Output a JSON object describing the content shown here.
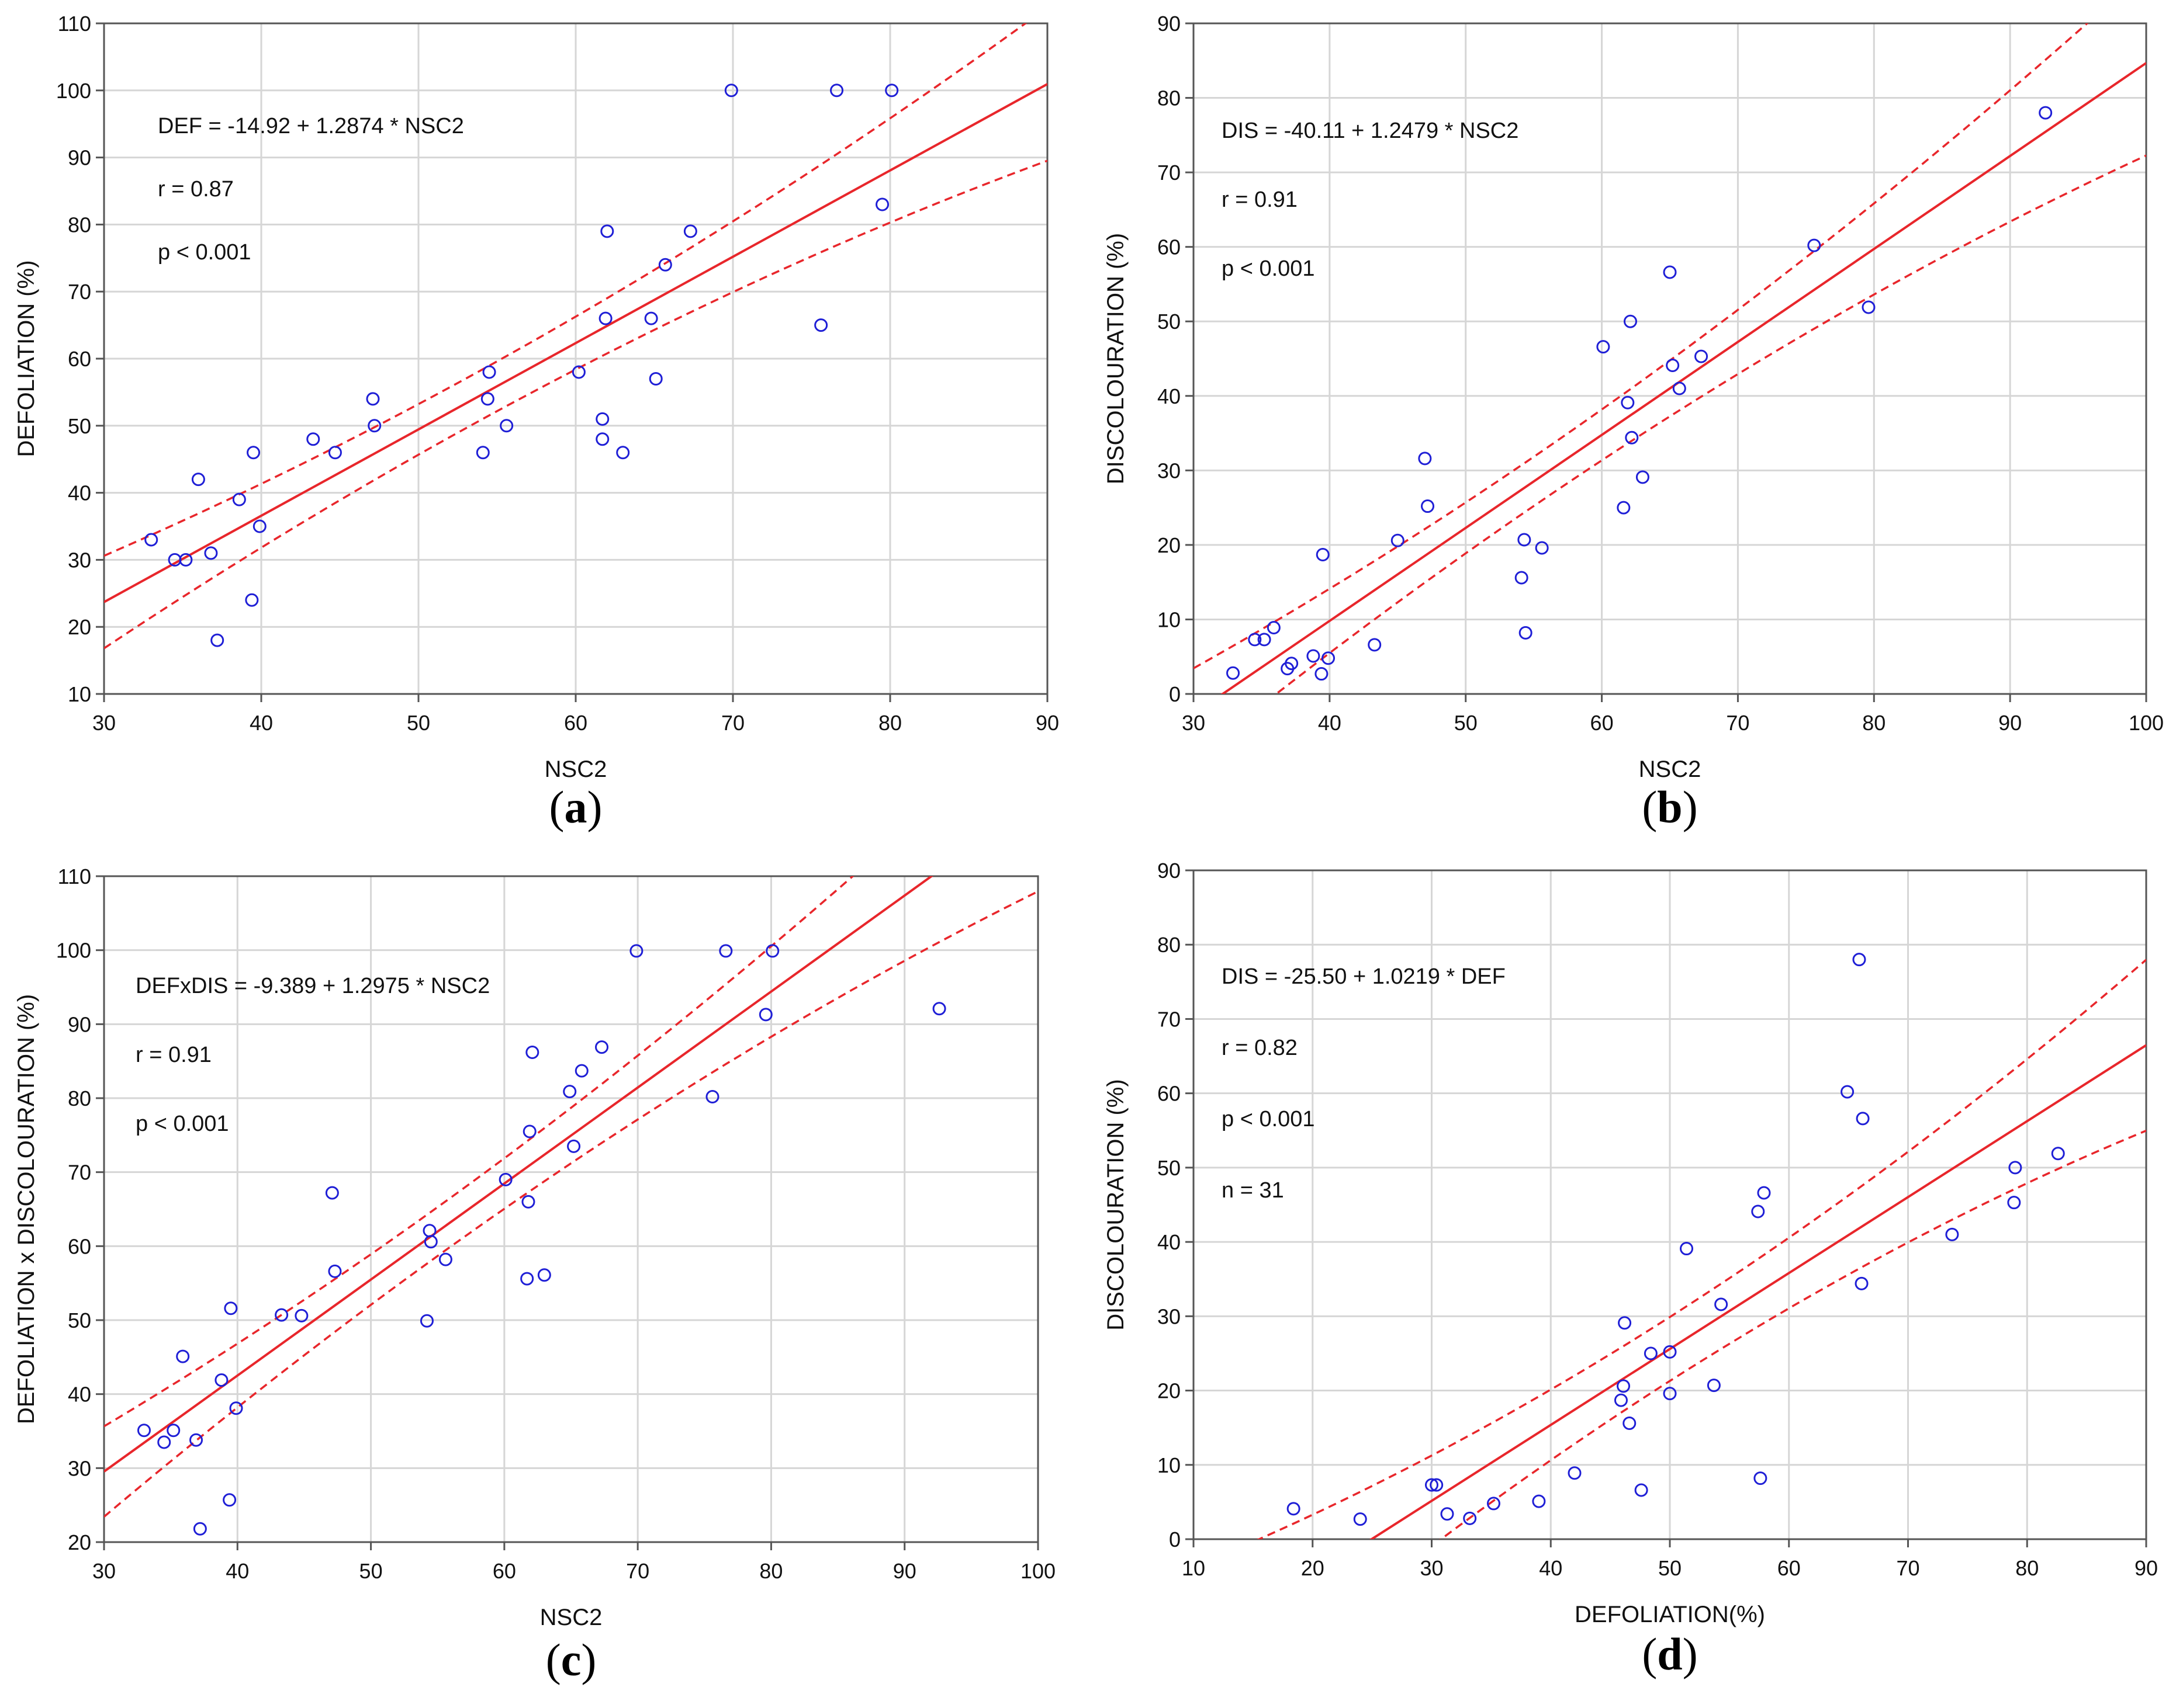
{
  "colors": {
    "point": "#1f1fd6",
    "fit_line": "#e8262b",
    "grid": "#d6d6d6",
    "axis": "#555555"
  },
  "chart_data": [
    {
      "type": "scatter",
      "panel_label": {
        "open": "(",
        "letter": "a",
        "close": ")"
      },
      "xlabel": "NSC2",
      "ylabel": "DEFOLIATION (%)",
      "xlim": [
        30,
        90
      ],
      "ylim": [
        10,
        110
      ],
      "xticks": [
        "30",
        "40",
        "50",
        "60",
        "70",
        "80",
        "90"
      ],
      "yticks": [
        "10",
        "20",
        "30",
        "40",
        "50",
        "60",
        "70",
        "80",
        "90",
        "100",
        "110"
      ],
      "annotations": [
        "DEF = -14.92 + 1.2874 * NSC2",
        "r = 0.87",
        "p < 0.001"
      ],
      "fit": {
        "intercept": -14.92,
        "slope": 1.2874
      },
      "ci_half_width": {
        "min": 3.7,
        "mid_x": 53.5,
        "edge_gain": 0.0058
      },
      "x": [
        33,
        34.5,
        35.2,
        36,
        36.8,
        37.2,
        38.6,
        39.4,
        39.5,
        39.9,
        43.3,
        44.7,
        47.1,
        47.2,
        54.1,
        54.4,
        54.5,
        55.6,
        60.2,
        61.7,
        61.7,
        61.9,
        62.0,
        63.0,
        64.8,
        65.1,
        65.7,
        67.3,
        69.9,
        75.6,
        76.6,
        79.5,
        80.1
      ],
      "y": [
        33,
        30,
        30,
        42,
        31,
        18,
        39,
        24,
        46,
        35,
        48,
        46,
        54,
        50,
        46,
        54,
        58,
        50,
        58,
        51,
        48,
        66,
        79,
        46,
        66,
        57,
        74,
        79,
        100,
        65,
        100,
        83,
        100
      ]
    },
    {
      "type": "scatter",
      "panel_label": {
        "open": "(",
        "letter": "b",
        "close": ")"
      },
      "xlabel": "NSC2",
      "ylabel": "DISCOLOURATION (%)",
      "xlim": [
        30,
        100
      ],
      "ylim": [
        0,
        90
      ],
      "xticks": [
        "30",
        "40",
        "50",
        "60",
        "70",
        "80",
        "90",
        "100"
      ],
      "yticks": [
        "0",
        "10",
        "20",
        "30",
        "40",
        "50",
        "60",
        "70",
        "80",
        "90"
      ],
      "annotations": [
        "DIS = -40.11 + 1.2479 * NSC2",
        "r = 0.91",
        "p < 0.001"
      ],
      "fit": {
        "intercept": -40.11,
        "slope": 1.2479
      },
      "ci_half_width": {
        "min": 3.3,
        "mid_x": 55,
        "edge_gain": 0.0045
      },
      "x": [
        32.9,
        34.5,
        35.2,
        35.9,
        36.9,
        37.2,
        38.8,
        39.4,
        39.5,
        39.9,
        43.3,
        45.0,
        47.0,
        47.2,
        54.1,
        54.3,
        54.4,
        55.6,
        60.1,
        61.6,
        61.9,
        62.1,
        62.2,
        63.0,
        65.0,
        65.2,
        65.7,
        67.3,
        75.6,
        79.6,
        92.6
      ],
      "y": [
        2.8,
        7.3,
        7.3,
        8.9,
        3.4,
        4.1,
        5.1,
        2.7,
        18.7,
        4.8,
        6.6,
        20.6,
        31.6,
        25.2,
        15.6,
        20.7,
        8.2,
        19.6,
        46.6,
        25.0,
        39.1,
        50.0,
        34.4,
        29.1,
        56.6,
        44.1,
        41.0,
        45.3,
        60.2,
        51.9,
        78.0
      ]
    },
    {
      "type": "scatter",
      "panel_label": {
        "open": "(",
        "letter": "c",
        "close": ")"
      },
      "xlabel": "NSC2",
      "ylabel": "DEFOLIATION x DISCOLOURATION (%)",
      "xlim": [
        30,
        100
      ],
      "ylim": [
        20,
        110
      ],
      "xticks": [
        "30",
        "40",
        "50",
        "60",
        "70",
        "80",
        "90",
        "100"
      ],
      "yticks": [
        "20",
        "30",
        "40",
        "50",
        "60",
        "70",
        "80",
        "90",
        "100",
        "110"
      ],
      "annotations": [
        "DEFxDIS = -9.389 + 1.2975 * NSC2",
        "r = 0.91",
        "p < 0.001"
      ],
      "fit": {
        "intercept": -9.389,
        "slope": 1.2975
      },
      "ci_half_width": {
        "min": 3.3,
        "mid_x": 55,
        "edge_gain": 0.0045
      },
      "x": [
        33,
        34.5,
        35.2,
        35.9,
        36.9,
        37.2,
        38.8,
        39.4,
        39.5,
        39.9,
        43.3,
        44.8,
        47.1,
        47.3,
        54.2,
        54.4,
        54.5,
        55.6,
        60.1,
        61.7,
        61.8,
        61.9,
        62.1,
        63.0,
        64.9,
        65.2,
        65.8,
        67.3,
        69.9,
        75.6,
        76.6,
        79.6,
        80.1,
        92.6
      ],
      "y": [
        35.1,
        33.5,
        35.1,
        45.1,
        33.8,
        21.8,
        41.9,
        25.7,
        51.6,
        38.1,
        50.7,
        50.6,
        67.2,
        56.6,
        49.9,
        62.1,
        60.6,
        58.2,
        69.0,
        55.6,
        66.0,
        75.5,
        86.2,
        56.1,
        80.9,
        73.5,
        83.7,
        86.9,
        99.9,
        80.2,
        99.9,
        91.3,
        99.9,
        92.1
      ]
    },
    {
      "type": "scatter",
      "panel_label": {
        "open": "(",
        "letter": "d",
        "close": ")"
      },
      "xlabel": "DEFOLIATION(%)",
      "ylabel": "DISCOLOURATION (%)",
      "xlim": [
        10,
        90
      ],
      "ylim": [
        0,
        90
      ],
      "xticks": [
        "10",
        "20",
        "30",
        "40",
        "50",
        "60",
        "70",
        "80",
        "90"
      ],
      "yticks": [
        "0",
        "10",
        "20",
        "30",
        "40",
        "50",
        "60",
        "70",
        "80",
        "90"
      ],
      "annotations": [
        "DIS = -25.50 + 1.0219 * DEF",
        "r = 0.82",
        "p < 0.001",
        "n = 31"
      ],
      "fit": {
        "intercept": -25.5,
        "slope": 1.0219
      },
      "ci_half_width": {
        "min": 4.3,
        "mid_x": 50,
        "edge_gain": 0.0045
      },
      "x": [
        18.4,
        24.0,
        30.0,
        30.4,
        31.3,
        33.2,
        35.2,
        39.0,
        42.0,
        45.9,
        46.1,
        46.2,
        46.6,
        47.6,
        48.4,
        50.0,
        50.0,
        51.4,
        53.7,
        54.3,
        57.4,
        57.6,
        57.9,
        64.9,
        65.9,
        66.1,
        66.2,
        73.7,
        78.9,
        79.0,
        82.6
      ],
      "y": [
        4.1,
        2.7,
        7.3,
        7.3,
        3.4,
        2.8,
        4.8,
        5.1,
        8.9,
        18.7,
        20.6,
        29.1,
        15.6,
        6.6,
        25.0,
        25.2,
        19.6,
        39.1,
        20.7,
        31.6,
        44.1,
        8.2,
        46.6,
        60.2,
        78.0,
        34.4,
        56.6,
        41.0,
        45.3,
        50.0,
        51.9
      ]
    }
  ]
}
